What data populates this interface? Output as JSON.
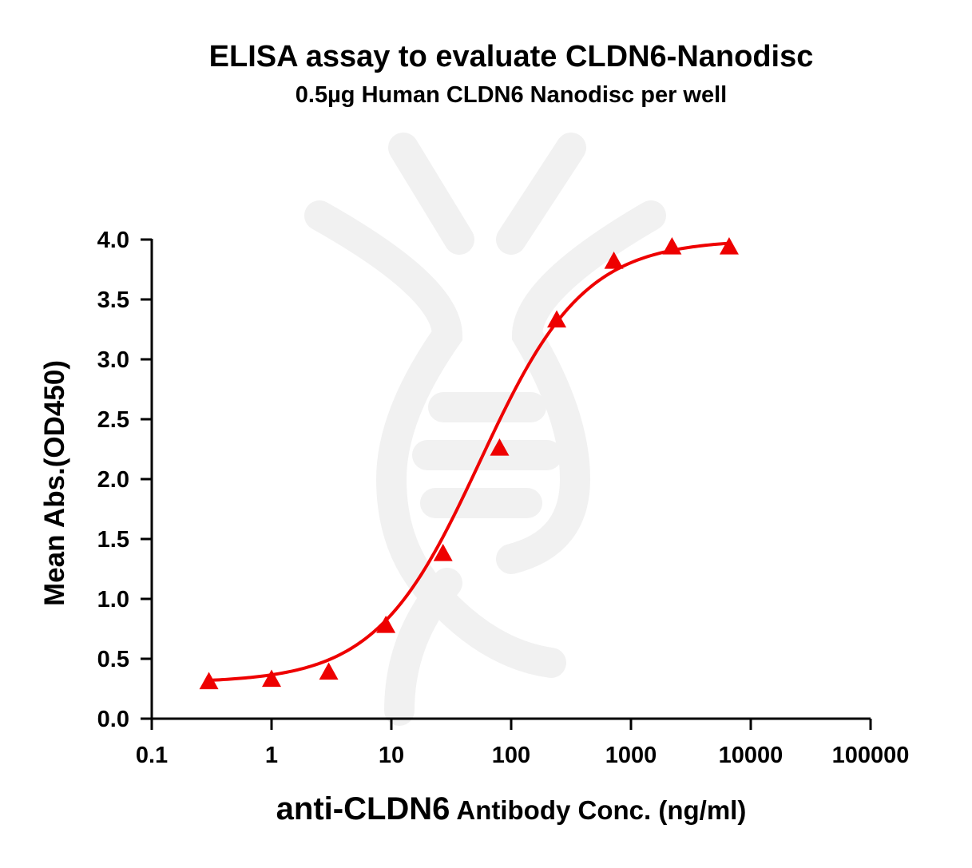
{
  "chart_data": {
    "type": "scatter",
    "title": "ELISA assay to evaluate CLDN6-Nanodisc",
    "subtitle": "0.5µg Human CLDN6 Nanodisc per well",
    "xlabel": {
      "main": "anti-CLDN6",
      "rest": " Antibody Conc. (ng/ml)"
    },
    "ylabel": "Mean Abs.(OD450)",
    "x_scale": "log",
    "xlim": [
      0.1,
      100000
    ],
    "ylim": [
      0,
      4.0
    ],
    "x_ticks": [
      0.1,
      1,
      10,
      100,
      1000,
      10000,
      100000
    ],
    "x_tick_labels": [
      "0.1",
      "1",
      "10",
      "100",
      "1000",
      "10000",
      "100000"
    ],
    "y_ticks": [
      0,
      0.5,
      1.0,
      1.5,
      2.0,
      2.5,
      3.0,
      3.5,
      4.0
    ],
    "y_tick_labels": [
      "0.0",
      "0.5",
      "1.0",
      "1.5",
      "2.0",
      "2.5",
      "3.0",
      "3.5",
      "4.0"
    ],
    "grid": false,
    "series": [
      {
        "marker": "triangle",
        "color": "#ee0000",
        "x": [
          0.3,
          1,
          3,
          9,
          27,
          80,
          240,
          720,
          2200,
          6600
        ],
        "y": [
          0.31,
          0.33,
          0.39,
          0.78,
          1.38,
          2.26,
          3.33,
          3.82,
          3.94,
          3.94
        ]
      }
    ],
    "fit": {
      "type": "4PL",
      "color": "#ee0000",
      "bottom": 0.3,
      "top": 4.0,
      "ec50": 55,
      "hill": 1.0,
      "x_range": [
        0.3,
        6600
      ]
    }
  }
}
